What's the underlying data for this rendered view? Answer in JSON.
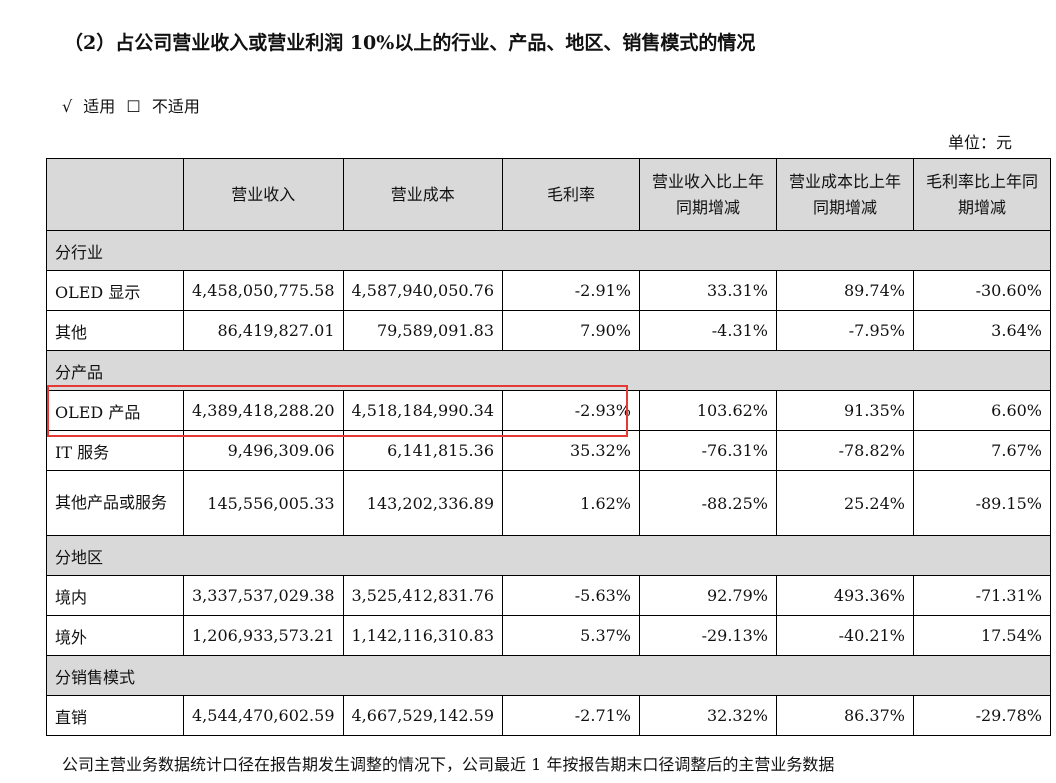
{
  "heading": "（2）占公司营业收入或营业利润 10%以上的行业、产品、地区、销售模式的情况",
  "applicability": {
    "applicable_mark": "√",
    "applicable_label": "适用",
    "not_applicable_mark": "☐",
    "not_applicable_label": "不适用"
  },
  "unit_label": "单位：元",
  "table": {
    "headers": [
      "",
      "营业收入",
      "营业成本",
      "毛利率",
      "营业收入比上年同期增减",
      "营业成本比上年同期增减",
      "毛利率比上年同期增减"
    ],
    "sections": [
      {
        "title": "分行业",
        "rows": [
          {
            "label": "OLED 显示",
            "revenue": "4,458,050,775.58",
            "cost": "4,587,940,050.76",
            "gross_margin": "-2.91%",
            "revenue_change": "33.31%",
            "cost_change": "89.74%",
            "margin_change": "-30.60%"
          },
          {
            "label": "其他",
            "revenue": "86,419,827.01",
            "cost": "79,589,091.83",
            "gross_margin": "7.90%",
            "revenue_change": "-4.31%",
            "cost_change": "-7.95%",
            "margin_change": "3.64%"
          }
        ]
      },
      {
        "title": "分产品",
        "rows": [
          {
            "label": "OLED 产品",
            "revenue": "4,389,418,288.20",
            "cost": "4,518,184,990.34",
            "gross_margin": "-2.93%",
            "revenue_change": "103.62%",
            "cost_change": "91.35%",
            "margin_change": "6.60%"
          },
          {
            "label": "IT 服务",
            "revenue": "9,496,309.06",
            "cost": "6,141,815.36",
            "gross_margin": "35.32%",
            "revenue_change": "-76.31%",
            "cost_change": "-78.82%",
            "margin_change": "7.67%"
          },
          {
            "label": "其他产品或服务",
            "revenue": "145,556,005.33",
            "cost": "143,202,336.89",
            "gross_margin": "1.62%",
            "revenue_change": "-88.25%",
            "cost_change": "25.24%",
            "margin_change": "-89.15%"
          }
        ]
      },
      {
        "title": "分地区",
        "rows": [
          {
            "label": "境内",
            "revenue": "3,337,537,029.38",
            "cost": "3,525,412,831.76",
            "gross_margin": "-5.63%",
            "revenue_change": "92.79%",
            "cost_change": "493.36%",
            "margin_change": "-71.31%"
          },
          {
            "label": "境外",
            "revenue": "1,206,933,573.21",
            "cost": "1,142,116,310.83",
            "gross_margin": "5.37%",
            "revenue_change": "-29.13%",
            "cost_change": "-40.21%",
            "margin_change": "17.54%"
          }
        ]
      },
      {
        "title": "分销售模式",
        "rows": [
          {
            "label": "直销",
            "revenue": "4,544,470,602.59",
            "cost": "4,667,529,142.59",
            "gross_margin": "-2.71%",
            "revenue_change": "32.32%",
            "cost_change": "86.37%",
            "margin_change": "-29.78%"
          }
        ]
      }
    ]
  },
  "footnote": "公司主营业务数据统计口径在报告期发生调整的情况下，公司最近 1 年按报告期末口径调整后的主营业务数据",
  "colors": {
    "highlight_box": "#e53935",
    "header_fill": "#d9d9d9"
  }
}
